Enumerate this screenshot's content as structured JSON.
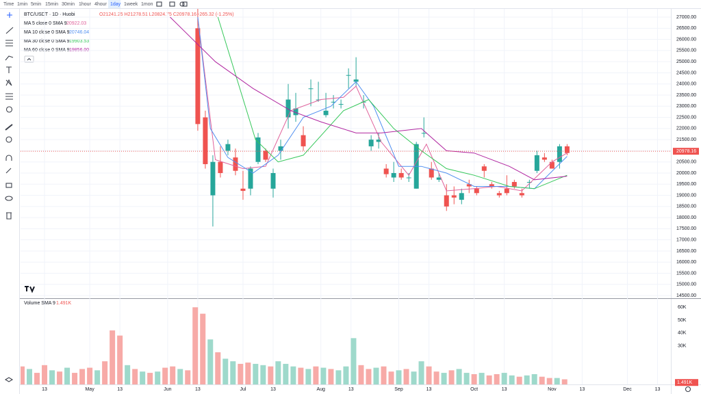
{
  "toolbar": {
    "intervals": [
      "Time",
      "1min",
      "5min",
      "15min",
      "30min",
      "1hour",
      "4hour",
      "1day",
      "1week",
      "1mon"
    ],
    "selected": 7
  },
  "legend": {
    "symbol": "BTC/USDT · 1D · Huobi",
    "ohlc": "O21241.25 H21278.51 L20824.75 C20978.16 -265.32 (-1.25%)",
    "studies": [
      {
        "name": "MA 5 close 0 SMA 9",
        "value": "20922.03",
        "color": "#e0609a"
      },
      {
        "name": "MA 10 close 0 SMA 9",
        "value": "20746.04",
        "color": "#4f8ff0"
      },
      {
        "name": "MA 30 close 0 SMA 9",
        "value": "19903.53",
        "color": "#34c759"
      },
      {
        "name": "MA 60 close 0 SMA 9",
        "value": "19856.00",
        "color": "#b0249f"
      }
    ],
    "volume": "Volume SMA 9",
    "volume_value": "1.491K"
  },
  "chart_data": {
    "type": "candlestick",
    "up_color": "#26a69a",
    "down_color": "#ef5350",
    "ylim": [
      14380,
      27370
    ],
    "yticks": [
      {
        "value": 14500,
        "label": "14500.00"
      },
      {
        "value": 15000,
        "label": "15000.00"
      },
      {
        "value": 15500,
        "label": "15500.00"
      },
      {
        "value": 16000,
        "label": "16000.00"
      },
      {
        "value": 16500,
        "label": "16500.00"
      },
      {
        "value": 17000,
        "label": "17000.00"
      },
      {
        "value": 17500,
        "label": "17500.00"
      },
      {
        "value": 18000,
        "label": "18000.00"
      },
      {
        "value": 18500,
        "label": "18500.00"
      },
      {
        "value": 19000,
        "label": "19000.00"
      },
      {
        "value": 19500,
        "label": "19500.00"
      },
      {
        "value": 20000,
        "label": "20000.00"
      },
      {
        "value": 20500,
        "label": "20500.00"
      },
      {
        "value": 21000,
        "label": "21000.00"
      },
      {
        "value": 21500,
        "label": "21500.00"
      },
      {
        "value": 22000,
        "label": "22000.00"
      },
      {
        "value": 22500,
        "label": "22500.00"
      },
      {
        "value": 23000,
        "label": "23000.00"
      },
      {
        "value": 23500,
        "label": "23500.00"
      },
      {
        "value": 24000,
        "label": "24000.00"
      },
      {
        "value": 24500,
        "label": "24500.00"
      },
      {
        "value": 25000,
        "label": "25000.00"
      },
      {
        "value": 25500,
        "label": "25500.00"
      },
      {
        "value": 26000,
        "label": "26000.00"
      },
      {
        "value": 26500,
        "label": "26500.00"
      },
      {
        "value": 27000,
        "label": "27000.00"
      }
    ],
    "xticks": [
      {
        "value": "Apr 13",
        "label": "13"
      },
      {
        "value": "May 1",
        "label": "May"
      },
      {
        "value": "May 13",
        "label": "13"
      },
      {
        "value": "Jun 1",
        "label": "Jun"
      },
      {
        "value": "Jun 13",
        "label": "13"
      },
      {
        "value": "Jul 1",
        "label": "Jul"
      },
      {
        "value": "Jul 13",
        "label": "13"
      },
      {
        "value": "Aug 1",
        "label": "Aug"
      },
      {
        "value": "Aug 13",
        "label": "13"
      },
      {
        "value": "Sep 1",
        "label": "Sep"
      },
      {
        "value": "Sep 13",
        "label": "13"
      },
      {
        "value": "Oct 1",
        "label": "Oct"
      },
      {
        "value": "Oct 13",
        "label": "13"
      },
      {
        "value": "Nov 1",
        "label": "Nov"
      },
      {
        "value": "Nov 13",
        "label": "13"
      },
      {
        "value": "Dec 1",
        "label": "Dec"
      },
      {
        "value": "Dec 13",
        "label": "13"
      }
    ],
    "last_price": 20978.16,
    "candles": {
      "x": [
        "Jun 13",
        "Jun 16",
        "Jun 19",
        "Jun 22",
        "Jun 25",
        "Jun 28",
        "Jul 1",
        "Jul 4",
        "Jul 7",
        "Jul 10",
        "Jul 13",
        "Jul 16",
        "Jul 19",
        "Jul 22",
        "Jul 25",
        "Jul 28",
        "Jul 31",
        "Aug 3",
        "Aug 6",
        "Aug 9",
        "Aug 12",
        "Aug 15",
        "Aug 18",
        "Aug 21",
        "Aug 24",
        "Aug 27",
        "Aug 30",
        "Sep 2",
        "Sep 5",
        "Sep 8",
        "Sep 11",
        "Sep 14",
        "Sep 17",
        "Sep 20",
        "Sep 23",
        "Sep 26",
        "Sep 29",
        "Oct 2",
        "Oct 5",
        "Oct 8",
        "Oct 11",
        "Oct 14",
        "Oct 17",
        "Oct 20",
        "Oct 23",
        "Oct 26",
        "Oct 29",
        "Nov 1",
        "Nov 4",
        "Nov 7"
      ],
      "open": [
        26500,
        22500,
        19000,
        20500,
        21000,
        20700,
        19300,
        19300,
        20500,
        21000,
        19300,
        21000,
        22500,
        22600,
        21700,
        23800,
        23300,
        22600,
        23200,
        23100,
        24400,
        24100,
        23200,
        21200,
        21400,
        20200,
        19800,
        20000,
        19800,
        19300,
        21800,
        20200,
        19700,
        19000,
        19000,
        18800,
        19500,
        19300,
        20300,
        19500,
        19100,
        19300,
        19600,
        19100,
        19600,
        20100,
        20700,
        20500,
        20500,
        21200
      ],
      "high": [
        27500,
        22800,
        20800,
        21200,
        21500,
        21100,
        20100,
        20300,
        21800,
        21100,
        20200,
        21500,
        24000,
        23600,
        22100,
        24200,
        24100,
        23600,
        23500,
        23300,
        24700,
        25200,
        23500,
        21700,
        21800,
        20400,
        20500,
        20200,
        20000,
        21400,
        22500,
        20500,
        20000,
        19500,
        19400,
        19300,
        19700,
        19400,
        20400,
        19600,
        19200,
        19900,
        19700,
        19300,
        19700,
        21000,
        20900,
        20600,
        21300,
        21300
      ],
      "low": [
        21900,
        20200,
        17600,
        19800,
        20800,
        19900,
        18800,
        19000,
        20400,
        20500,
        18900,
        20600,
        22000,
        22300,
        21000,
        23000,
        23200,
        22500,
        22900,
        22900,
        23800,
        23900,
        22900,
        21000,
        21100,
        19800,
        19600,
        19700,
        19600,
        19300,
        21600,
        19700,
        19600,
        18300,
        18600,
        18600,
        19100,
        19000,
        19800,
        19300,
        18900,
        19000,
        19300,
        18900,
        19300,
        20000,
        20500,
        20200,
        20200,
        20800
      ],
      "close": [
        22200,
        20400,
        20500,
        20000,
        21300,
        20100,
        19200,
        20200,
        21600,
        20600,
        20000,
        21200,
        23300,
        22900,
        21200,
        23800,
        23300,
        22800,
        23200,
        23100,
        24400,
        24200,
        23200,
        21500,
        21500,
        19950,
        20000,
        19800,
        19800,
        21300,
        21800,
        19800,
        19800,
        18500,
        18900,
        19100,
        19400,
        19100,
        20100,
        19400,
        19000,
        19100,
        19400,
        19000,
        19600,
        20800,
        20600,
        20200,
        21200,
        20900
      ]
    },
    "series": [
      {
        "name": "MA 5 close 0 SMA 9",
        "color": "#e0609a",
        "x": [
          "Jun 13",
          "Jun 20",
          "Jul 1",
          "Jul 10",
          "Jul 20",
          "Aug 1",
          "Aug 10",
          "Aug 15",
          "Aug 25",
          "Sep 5",
          "Sep 12",
          "Sep 20",
          "Oct 1",
          "Oct 10",
          "Oct 20",
          "Nov 1",
          "Nov 7"
        ],
        "values": [
          27000,
          20600,
          20200,
          20300,
          22800,
          23300,
          23400,
          23900,
          21400,
          19900,
          21300,
          19200,
          19300,
          19400,
          19200,
          20500,
          20900
        ]
      },
      {
        "name": "MA 10 close 0 SMA 9",
        "color": "#4f8ff0",
        "x": [
          "Jun 13",
          "Jun 18",
          "Jun 25",
          "Jul 5",
          "Jul 15",
          "Jul 25",
          "Aug 5",
          "Aug 15",
          "Aug 22",
          "Sep 1",
          "Sep 10",
          "Sep 20",
          "Oct 1",
          "Oct 15",
          "Oct 25",
          "Nov 7"
        ],
        "values": [
          27000,
          22000,
          20700,
          20000,
          20800,
          22500,
          23000,
          24100,
          23000,
          20300,
          20300,
          20000,
          19400,
          19400,
          19300,
          20750
        ]
      },
      {
        "name": "MA 30 close 0 SMA 9",
        "color": "#34c759",
        "x": [
          "Jun 21",
          "Jul 6",
          "Jul 15",
          "Jul 25",
          "Aug 10",
          "Aug 20",
          "Aug 30",
          "Sep 10",
          "Sep 20",
          "Oct 1",
          "Oct 15",
          "Oct 25",
          "Nov 7"
        ],
        "values": [
          27000,
          21500,
          20500,
          20800,
          22800,
          23300,
          22000,
          21000,
          20200,
          19900,
          19400,
          19300,
          19900
        ]
      },
      {
        "name": "MA 60 close 0 SMA 9",
        "color": "#b0249f",
        "x": [
          "Jun 2",
          "Jun 20",
          "Jul 5",
          "Jul 20",
          "Aug 1",
          "Aug 15",
          "Aug 25",
          "Sep 10",
          "Sep 20",
          "Oct 1",
          "Oct 15",
          "Oct 25",
          "Nov 7"
        ],
        "values": [
          27000,
          25000,
          23800,
          22800,
          22300,
          21800,
          21800,
          22000,
          21000,
          20900,
          20300,
          19700,
          19860
        ]
      }
    ],
    "volume": {
      "ylim": [
        0,
        66500
      ],
      "yticks": [
        {
          "value": 30000,
          "label": "30K"
        },
        {
          "value": 40000,
          "label": "40K"
        },
        {
          "value": 50000,
          "label": "50K"
        },
        {
          "value": 60000,
          "label": "60K"
        }
      ],
      "sma": 1491,
      "x": [
        "Apr 4",
        "Apr 7",
        "Apr 10",
        "Apr 13",
        "Apr 16",
        "Apr 19",
        "Apr 22",
        "Apr 25",
        "Apr 28",
        "May 1",
        "May 4",
        "May 7",
        "May 10",
        "May 13",
        "May 16",
        "May 19",
        "May 22",
        "May 25",
        "May 28",
        "May 31",
        "Jun 3",
        "Jun 6",
        "Jun 9",
        "Jun 12",
        "Jun 15",
        "Jun 18",
        "Jun 21",
        "Jun 24",
        "Jun 27",
        "Jun 30",
        "Jul 3",
        "Jul 6",
        "Jul 9",
        "Jul 12",
        "Jul 15",
        "Jul 18",
        "Jul 21",
        "Jul 24",
        "Jul 27",
        "Jul 30",
        "Aug 2",
        "Aug 5",
        "Aug 8",
        "Aug 11",
        "Aug 14",
        "Aug 17",
        "Aug 20",
        "Aug 23",
        "Aug 26",
        "Aug 29",
        "Sep 1",
        "Sep 4",
        "Sep 7",
        "Sep 10",
        "Sep 13",
        "Sep 16",
        "Sep 19",
        "Sep 22",
        "Sep 25",
        "Sep 28",
        "Oct 1",
        "Oct 4",
        "Oct 7",
        "Oct 10",
        "Oct 13",
        "Oct 16",
        "Oct 19",
        "Oct 22",
        "Oct 25",
        "Oct 28",
        "Oct 31",
        "Nov 3",
        "Nov 6"
      ],
      "values": [
        14000,
        12000,
        9000,
        15000,
        11000,
        10000,
        13000,
        9000,
        12000,
        13000,
        11000,
        18000,
        42000,
        38000,
        15000,
        12000,
        10000,
        9000,
        10000,
        13000,
        14000,
        12000,
        11000,
        60000,
        55000,
        35000,
        25000,
        20000,
        18000,
        16000,
        17000,
        16000,
        15000,
        14000,
        18000,
        16000,
        14000,
        13000,
        12000,
        14000,
        13000,
        12000,
        11000,
        14000,
        36000,
        15000,
        12000,
        13000,
        14000,
        10000,
        11000,
        12000,
        10000,
        18000,
        14000,
        10000,
        9000,
        11000,
        12000,
        9000,
        8000,
        9000,
        7000,
        8000,
        9000,
        7000,
        6000,
        7000,
        8000,
        6000,
        5000,
        5000,
        4000
      ],
      "colors": [
        "#f7aaa7",
        "#9ed9cb",
        "#f7aaa7",
        "#f7aaa7",
        "#9ed9cb",
        "#f7aaa7",
        "#9ed9cb",
        "#f7aaa7",
        "#f7aaa7",
        "#f7aaa7",
        "#9ed9cb",
        "#f7aaa7",
        "#f7aaa7",
        "#f7aaa7",
        "#9ed9cb",
        "#f7aaa7",
        "#9ed9cb",
        "#f7aaa7",
        "#9ed9cb",
        "#f7aaa7",
        "#f7aaa7",
        "#9ed9cb",
        "#f7aaa7",
        "#f7aaa7",
        "#f7aaa7",
        "#9ed9cb",
        "#f7aaa7",
        "#9ed9cb",
        "#9ed9cb",
        "#f7aaa7",
        "#f7aaa7",
        "#9ed9cb",
        "#9ed9cb",
        "#f7aaa7",
        "#9ed9cb",
        "#9ed9cb",
        "#9ed9cb",
        "#f7aaa7",
        "#9ed9cb",
        "#f7aaa7",
        "#9ed9cb",
        "#f7aaa7",
        "#9ed9cb",
        "#9ed9cb",
        "#9ed9cb",
        "#f7aaa7",
        "#f7aaa7",
        "#9ed9cb",
        "#f7aaa7",
        "#f7aaa7",
        "#9ed9cb",
        "#f7aaa7",
        "#9ed9cb",
        "#9ed9cb",
        "#f7aaa7",
        "#f7aaa7",
        "#9ed9cb",
        "#f7aaa7",
        "#9ed9cb",
        "#9ed9cb",
        "#f7aaa7",
        "#9ed9cb",
        "#f7aaa7",
        "#f7aaa7",
        "#9ed9cb",
        "#9ed9cb",
        "#f7aaa7",
        "#9ed9cb",
        "#9ed9cb",
        "#f7aaa7",
        "#f7aaa7",
        "#9ed9cb",
        "#f7aaa7"
      ]
    }
  }
}
